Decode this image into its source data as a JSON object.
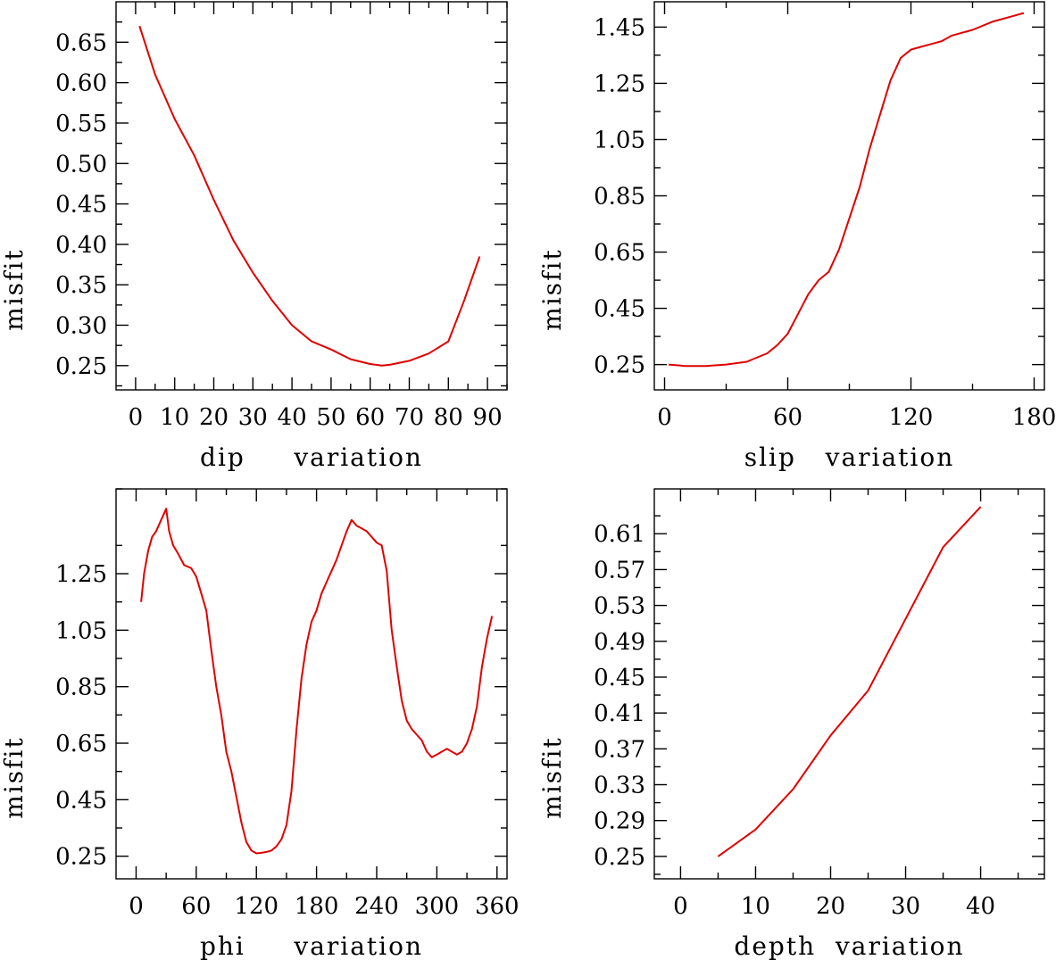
{
  "chart_data": [
    {
      "type": "line",
      "xlabel": "dip     variation",
      "ylabel": "misfit",
      "xlim": [
        -5,
        95
      ],
      "ylim": [
        0.22,
        0.7
      ],
      "xticks": [
        0,
        10,
        20,
        30,
        40,
        50,
        60,
        70,
        80,
        90
      ],
      "xtick_labels": [
        "0",
        "10",
        "20",
        "30",
        "40",
        "50",
        "60",
        "70",
        "80",
        "90"
      ],
      "yticks": [
        0.25,
        0.3,
        0.35,
        0.4,
        0.45,
        0.5,
        0.55,
        0.6,
        0.65
      ],
      "ytick_labels": [
        "0.25",
        "0.30",
        "0.35",
        "0.40",
        "0.45",
        "0.50",
        "0.55",
        "0.60",
        "0.65"
      ],
      "color": "#e00000",
      "series": [
        {
          "x": [
            1,
            5,
            10,
            15,
            20,
            25,
            30,
            35,
            40,
            45,
            50,
            55,
            60,
            63,
            65,
            70,
            75,
            80,
            84,
            88
          ],
          "values": [
            0.67,
            0.61,
            0.555,
            0.51,
            0.455,
            0.405,
            0.365,
            0.33,
            0.3,
            0.28,
            0.27,
            0.258,
            0.252,
            0.25,
            0.251,
            0.256,
            0.265,
            0.28,
            0.33,
            0.385
          ]
        }
      ]
    },
    {
      "type": "line",
      "xlabel": "slip   variation",
      "ylabel": "misfit",
      "xlim": [
        -5,
        185
      ],
      "ylim": [
        0.16,
        1.54
      ],
      "xticks": [
        0,
        60,
        120,
        180
      ],
      "xtick_labels": [
        "0",
        "60",
        "120",
        "180"
      ],
      "yticks": [
        0.25,
        0.45,
        0.65,
        0.85,
        1.05,
        1.25,
        1.45
      ],
      "ytick_labels": [
        "0.25",
        "0.45",
        "0.65",
        "0.85",
        "1.05",
        "1.25",
        "1.45"
      ],
      "color": "#e00000",
      "series": [
        {
          "x": [
            2,
            10,
            20,
            30,
            40,
            50,
            55,
            60,
            65,
            70,
            75,
            80,
            85,
            90,
            95,
            100,
            105,
            110,
            115,
            120,
            125,
            130,
            135,
            140,
            150,
            160,
            170,
            175
          ],
          "values": [
            0.25,
            0.245,
            0.245,
            0.25,
            0.26,
            0.29,
            0.32,
            0.36,
            0.43,
            0.5,
            0.55,
            0.58,
            0.66,
            0.77,
            0.88,
            1.02,
            1.14,
            1.26,
            1.34,
            1.37,
            1.38,
            1.39,
            1.4,
            1.42,
            1.44,
            1.47,
            1.49,
            1.5
          ]
        }
      ]
    },
    {
      "type": "line",
      "xlabel": "phi     variation",
      "ylabel": "misfit",
      "xlim": [
        -20,
        370
      ],
      "ylim": [
        0.17,
        1.55
      ],
      "xticks": [
        0,
        60,
        120,
        180,
        240,
        300,
        360
      ],
      "xtick_labels": [
        "0",
        "60",
        "120",
        "180",
        "240",
        "300",
        "360"
      ],
      "yticks": [
        0.25,
        0.45,
        0.65,
        0.85,
        1.05,
        1.25
      ],
      "ytick_labels": [
        "0.25",
        "0.45",
        "0.65",
        "0.85",
        "1.05",
        "1.25"
      ],
      "color": "#e00000",
      "series": [
        {
          "x": [
            5,
            8,
            12,
            16,
            20,
            25,
            30,
            33,
            37,
            42,
            48,
            55,
            60,
            65,
            70,
            75,
            80,
            85,
            90,
            95,
            100,
            105,
            110,
            115,
            120,
            125,
            130,
            135,
            140,
            145,
            150,
            155,
            160,
            165,
            170,
            175,
            180,
            185,
            190,
            195,
            200,
            205,
            210,
            215,
            220,
            225,
            230,
            235,
            240,
            245,
            250,
            255,
            260,
            265,
            270,
            275,
            280,
            285,
            290,
            295,
            300,
            305,
            310,
            315,
            320,
            325,
            330,
            335,
            340,
            345,
            350,
            355
          ],
          "values": [
            1.15,
            1.25,
            1.33,
            1.38,
            1.4,
            1.44,
            1.48,
            1.4,
            1.35,
            1.32,
            1.28,
            1.27,
            1.24,
            1.18,
            1.12,
            0.98,
            0.85,
            0.75,
            0.62,
            0.55,
            0.46,
            0.37,
            0.3,
            0.27,
            0.26,
            0.262,
            0.265,
            0.27,
            0.285,
            0.31,
            0.36,
            0.48,
            0.7,
            0.88,
            1.0,
            1.08,
            1.12,
            1.18,
            1.22,
            1.26,
            1.3,
            1.35,
            1.4,
            1.44,
            1.42,
            1.41,
            1.4,
            1.38,
            1.36,
            1.35,
            1.26,
            1.05,
            0.92,
            0.8,
            0.73,
            0.7,
            0.68,
            0.66,
            0.62,
            0.6,
            0.61,
            0.62,
            0.63,
            0.62,
            0.61,
            0.62,
            0.65,
            0.7,
            0.78,
            0.92,
            1.02,
            1.1
          ]
        }
      ]
    },
    {
      "type": "line",
      "xlabel": "depth  variation",
      "ylabel": "misfit",
      "xlim": [
        -3.5,
        48.5
      ],
      "ylim": [
        0.225,
        0.66
      ],
      "xticks": [
        0,
        10,
        20,
        30,
        40
      ],
      "xtick_labels": [
        "0",
        "10",
        "20",
        "30",
        "40"
      ],
      "yticks": [
        0.25,
        0.29,
        0.33,
        0.37,
        0.41,
        0.45,
        0.49,
        0.53,
        0.57,
        0.61
      ],
      "ytick_labels": [
        "0.25",
        "0.29",
        "0.33",
        "0.37",
        "0.41",
        "0.45",
        "0.49",
        "0.53",
        "0.57",
        "0.61"
      ],
      "color": "#e00000",
      "series": [
        {
          "x": [
            5,
            10,
            15,
            20,
            25,
            30,
            35,
            40
          ],
          "values": [
            0.25,
            0.28,
            0.325,
            0.385,
            0.435,
            0.515,
            0.595,
            0.64
          ]
        }
      ]
    }
  ]
}
